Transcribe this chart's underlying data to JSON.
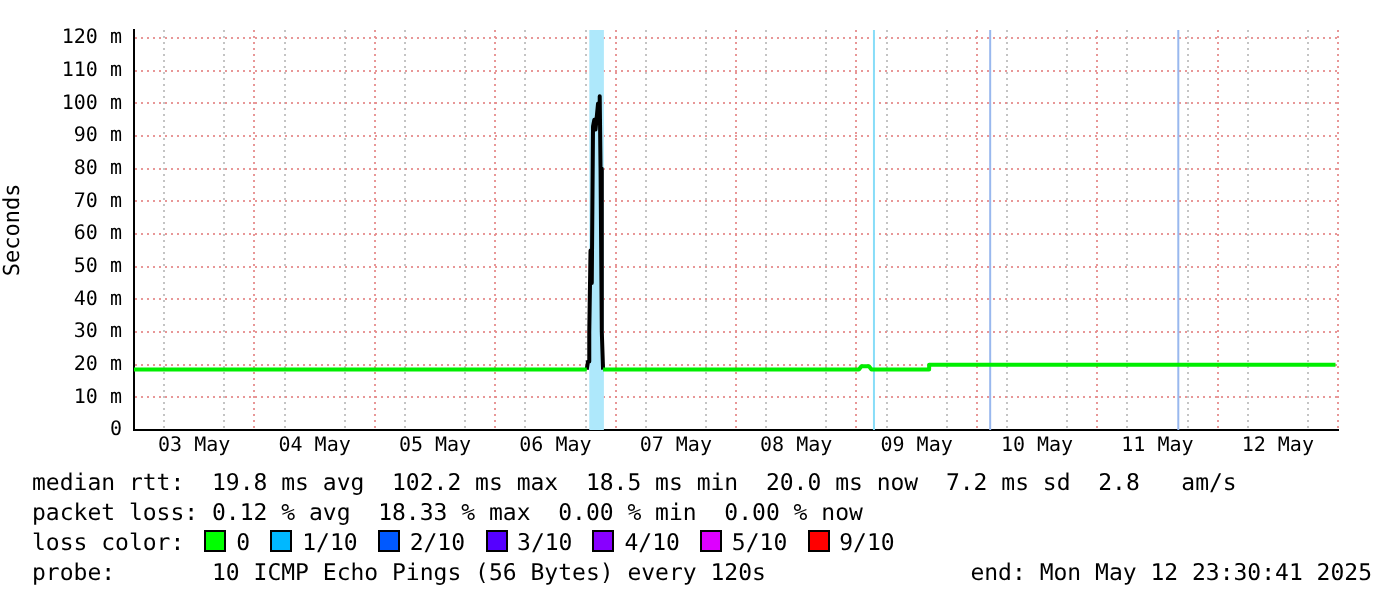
{
  "chart_data": {
    "type": "line",
    "ylabel": "Seconds",
    "xlim": [
      "2025-05-03T00:00",
      "2025-05-13T00:00"
    ],
    "xticks": [
      {
        "value": "2025-05-03T00:00",
        "label": null
      },
      {
        "value": "2025-05-03T06:00",
        "label": null
      },
      {
        "value": "2025-05-03T12:00",
        "label": "03 May"
      },
      {
        "value": "2025-05-03T18:00",
        "label": null
      },
      {
        "value": "2025-05-04T00:00",
        "label": null
      },
      {
        "value": "2025-05-04T06:00",
        "label": null
      },
      {
        "value": "2025-05-04T12:00",
        "label": "04 May"
      },
      {
        "value": "2025-05-04T18:00",
        "label": null
      },
      {
        "value": "2025-05-05T00:00",
        "label": null
      },
      {
        "value": "2025-05-05T06:00",
        "label": null
      },
      {
        "value": "2025-05-05T12:00",
        "label": "05 May"
      },
      {
        "value": "2025-05-05T18:00",
        "label": null
      },
      {
        "value": "2025-05-06T00:00",
        "label": null
      },
      {
        "value": "2025-05-06T06:00",
        "label": null
      },
      {
        "value": "2025-05-06T12:00",
        "label": "06 May"
      },
      {
        "value": "2025-05-06T18:00",
        "label": null
      },
      {
        "value": "2025-05-07T00:00",
        "label": null
      },
      {
        "value": "2025-05-07T06:00",
        "label": null
      },
      {
        "value": "2025-05-07T12:00",
        "label": "07 May"
      },
      {
        "value": "2025-05-07T18:00",
        "label": null
      },
      {
        "value": "2025-05-08T00:00",
        "label": null
      },
      {
        "value": "2025-05-08T06:00",
        "label": null
      },
      {
        "value": "2025-05-08T12:00",
        "label": "08 May"
      },
      {
        "value": "2025-05-08T18:00",
        "label": null
      },
      {
        "value": "2025-05-09T00:00",
        "label": null
      },
      {
        "value": "2025-05-09T06:00",
        "label": null
      },
      {
        "value": "2025-05-09T12:00",
        "label": "09 May"
      },
      {
        "value": "2025-05-09T18:00",
        "label": null
      },
      {
        "value": "2025-05-10T00:00",
        "label": null
      },
      {
        "value": "2025-05-10T06:00",
        "label": null
      },
      {
        "value": "2025-05-10T12:00",
        "label": "10 May"
      },
      {
        "value": "2025-05-10T18:00",
        "label": null
      },
      {
        "value": "2025-05-11T00:00",
        "label": null
      },
      {
        "value": "2025-05-11T06:00",
        "label": null
      },
      {
        "value": "2025-05-11T12:00",
        "label": "11 May"
      },
      {
        "value": "2025-05-11T18:00",
        "label": null
      },
      {
        "value": "2025-05-12T00:00",
        "label": null
      },
      {
        "value": "2025-05-12T06:00",
        "label": null
      },
      {
        "value": "2025-05-12T12:00",
        "label": "12 May"
      },
      {
        "value": "2025-05-12T18:00",
        "label": null
      },
      {
        "value": "2025-05-13T00:00",
        "label": null
      }
    ],
    "ylim": [
      0,
      122.5
    ],
    "yticks": [
      0,
      {
        "value": 10,
        "label": "10 m"
      },
      {
        "value": 20,
        "label": "20 m"
      },
      {
        "value": 30,
        "label": "30 m"
      },
      {
        "value": 40,
        "label": "40 m"
      },
      {
        "value": 50,
        "label": "50 m"
      },
      {
        "value": 60,
        "label": "60 m"
      },
      {
        "value": 70,
        "label": "70 m"
      },
      {
        "value": 80,
        "label": "80 m"
      },
      {
        "value": 90,
        "label": "90 m"
      },
      {
        "value": 100,
        "label": "100 m"
      },
      {
        "value": 110,
        "label": "110 m"
      },
      {
        "value": 120,
        "label": "120 m"
      }
    ],
    "grid": true,
    "legend": false,
    "marker": "none",
    "line_style": "solid",
    "series": [
      {
        "color": "#00ee00",
        "x": [
          "2025-05-03T00:00",
          "2025-05-06T18:15",
          "2025-05-06T18:30",
          "2025-05-06T21:30",
          "2025-05-09T00:30",
          "2025-05-09T01:00",
          "2025-05-09T02:30",
          "2025-05-09T03:00",
          "2025-05-09T14:20",
          "2025-05-09T14:30",
          "2025-05-12T23:30"
        ],
        "values": [
          18.5,
          18.5,
          null,
          18.5,
          18.5,
          19.5,
          19.5,
          18.5,
          18.5,
          20,
          20
        ]
      },
      {
        "color": "#000000",
        "x": [
          "2025-05-06T18:15",
          "2025-05-06T18:30",
          "2025-05-06T18:45",
          "2025-05-06T19:00",
          "2025-05-06T19:15",
          "2025-05-06T19:30",
          "2025-05-06T19:45",
          "2025-05-06T20:00",
          "2025-05-06T20:30",
          "2025-05-06T20:50",
          "2025-05-06T21:00",
          "2025-05-06T21:15",
          "2025-05-06T21:30"
        ],
        "values": [
          18.5,
          21,
          30,
          55,
          45,
          93,
          95,
          92,
          100,
          102.2,
          80,
          30,
          18.5
        ]
      }
    ],
    "bands": [
      {
        "axis": "x",
        "from": "2025-05-06T18:45",
        "to": "2025-05-06T21:40",
        "color": "#aee8fb"
      }
    ],
    "ref_lines": [
      {
        "axis": "x",
        "value": "2025-05-09T03:30",
        "color": "#88ddf8"
      },
      {
        "axis": "x",
        "value": "2025-05-10T02:40",
        "color": "#99b8ee"
      },
      {
        "axis": "x",
        "value": "2025-05-11T16:10",
        "color": "#99b8ee"
      }
    ],
    "annotations": [
      "median rtt:  19.8 ms avg  102.2 ms max  18.5 ms min  20.0 ms now  7.2 ms sd  2.8   am/s",
      "packet loss: 0.12 % avg  18.33 % max  0.00 % min  0.00 % now",
      "loss color:",
      "0",
      "1/10",
      "2/10",
      "3/10",
      "4/10",
      "5/10",
      "9/10",
      "probe:       10 ICMP Echo Pings (56 Bytes) every 120s",
      "end: Mon May 12 23:30:41 2025"
    ]
  }
}
